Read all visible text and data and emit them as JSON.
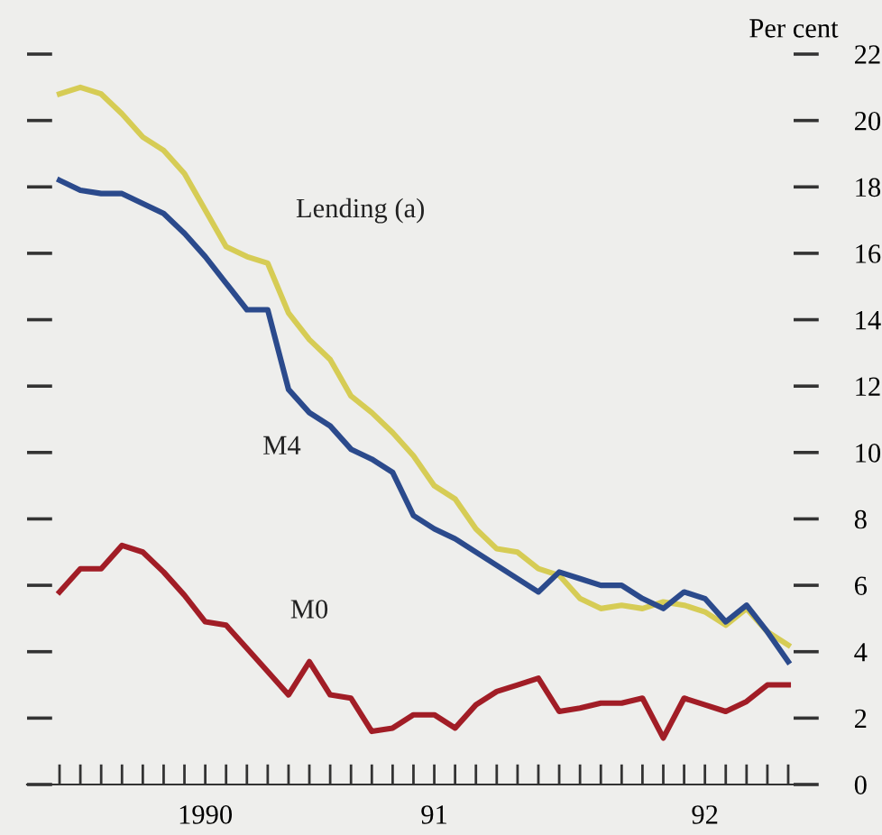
{
  "chart_data": {
    "type": "line",
    "ylabel": "Per cent",
    "categories": [
      null,
      null,
      null,
      null,
      null,
      null,
      null,
      "1990",
      null,
      null,
      null,
      null,
      null,
      null,
      null,
      null,
      null,
      null,
      "91",
      null,
      null,
      null,
      null,
      null,
      null,
      null,
      null,
      null,
      null,
      null,
      null,
      "92",
      null,
      null,
      null,
      null
    ],
    "series": [
      {
        "name": "Lending (a)",
        "color": "#d6cc55",
        "values": [
          20.8,
          21.0,
          20.8,
          20.2,
          19.5,
          19.1,
          18.4,
          17.3,
          16.2,
          15.9,
          15.7,
          14.2,
          13.4,
          12.8,
          11.7,
          11.2,
          10.6,
          9.9,
          9.0,
          8.6,
          7.7,
          7.1,
          7.0,
          6.5,
          6.3,
          5.6,
          5.3,
          5.4,
          5.3,
          5.5,
          5.4,
          5.2,
          4.8,
          5.3,
          4.6,
          4.2
        ]
      },
      {
        "name": "M4",
        "color": "#2b4a8c",
        "values": [
          18.2,
          17.9,
          17.8,
          17.8,
          17.5,
          17.2,
          16.6,
          15.9,
          15.1,
          14.3,
          14.3,
          11.9,
          11.2,
          10.8,
          10.1,
          9.8,
          9.4,
          8.1,
          7.7,
          7.4,
          7.0,
          6.6,
          6.2,
          5.8,
          6.4,
          6.2,
          6.0,
          6.0,
          5.6,
          5.3,
          5.8,
          5.6,
          4.9,
          5.4,
          4.6,
          3.7
        ]
      },
      {
        "name": "M0",
        "color": "#a11d26",
        "values": [
          5.8,
          6.5,
          6.5,
          7.2,
          7.0,
          6.4,
          5.7,
          4.9,
          4.8,
          4.1,
          3.4,
          2.7,
          3.7,
          2.7,
          2.6,
          1.6,
          1.7,
          2.1,
          2.1,
          1.7,
          2.4,
          2.8,
          3.0,
          3.2,
          2.2,
          2.3,
          2.45,
          2.45,
          2.6,
          1.4,
          2.6,
          2.4,
          2.2,
          2.5,
          3.0,
          3.0
        ]
      }
    ],
    "ylim": [
      0,
      22
    ],
    "yticks": [
      0,
      2,
      4,
      6,
      8,
      10,
      12,
      14,
      16,
      18,
      20,
      22
    ],
    "grid": false,
    "legend": false,
    "marker": "none",
    "line_style": "solid"
  }
}
